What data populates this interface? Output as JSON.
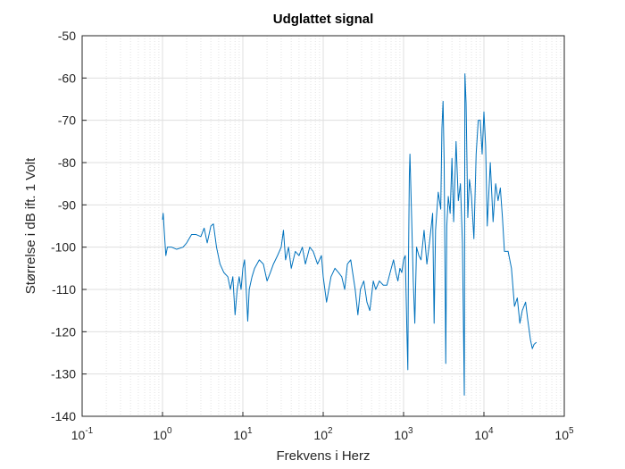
{
  "chart_data": {
    "type": "line",
    "title": "Udglattet signal",
    "x_label": "Frekvens i Herz",
    "y_label": "Størrelse i dB ift. 1 Volt",
    "x_scale": "log",
    "grid": true,
    "minor_grid": true,
    "xlim": [
      0.1,
      100000
    ],
    "xticks": [
      {
        "value": 0.1,
        "label": "10^-1"
      },
      {
        "value": 1,
        "label": "10^0"
      },
      {
        "value": 10,
        "label": "10^1"
      },
      {
        "value": 100,
        "label": "10^2"
      },
      {
        "value": 1000,
        "label": "10^3"
      },
      {
        "value": 10000,
        "label": "10^4"
      },
      {
        "value": 100000,
        "label": "10^5"
      }
    ],
    "ylim": [
      -140,
      -50
    ],
    "yticks": [
      -140,
      -130,
      -120,
      -110,
      -100,
      -90,
      -80,
      -70,
      -60,
      -50
    ],
    "x": [
      1.0,
      1.02,
      1.05,
      1.1,
      1.15,
      1.3,
      1.5,
      1.8,
      2.0,
      2.3,
      2.6,
      3.0,
      3.3,
      3.6,
      4.0,
      4.3,
      4.7,
      5.2,
      5.8,
      6.5,
      7.0,
      7.5,
      8.0,
      8.5,
      9.0,
      9.5,
      10,
      10.5,
      11,
      11.5,
      12,
      13,
      14,
      16,
      18,
      20,
      22,
      24,
      27,
      30,
      32,
      34,
      37,
      40,
      45,
      50,
      55,
      60,
      68,
      75,
      85,
      95,
      100,
      110,
      125,
      140,
      155,
      170,
      185,
      200,
      220,
      250,
      270,
      290,
      320,
      350,
      380,
      420,
      450,
      500,
      560,
      620,
      680,
      750,
      800,
      850,
      900,
      950,
      1000,
      1050,
      1100,
      1130,
      1150,
      1180,
      1200,
      1260,
      1320,
      1380,
      1450,
      1550,
      1650,
      1800,
      1950,
      2100,
      2300,
      2400,
      2500,
      2700,
      2900,
      3000,
      3100,
      3200,
      3350,
      3450,
      3600,
      3800,
      4000,
      4200,
      4500,
      4800,
      5100,
      5400,
      5700,
      5800,
      6000,
      6300,
      6600,
      7000,
      7500,
      8000,
      8500,
      9000,
      9500,
      10000,
      10500,
      11000,
      12000,
      13000,
      14000,
      15000,
      16000,
      17000,
      18000,
      20000,
      22000,
      24000,
      26000,
      28000,
      30000,
      33000,
      35000,
      38000,
      40000,
      42000,
      45000
    ],
    "series": [
      {
        "name": "Udglattet signal",
        "color": "#0072bd",
        "values": [
          -93.5,
          -92,
          -96,
          -102,
          -100,
          -100,
          -100.5,
          -100,
          -99,
          -97,
          -97,
          -97.5,
          -95.5,
          -99,
          -95,
          -94.5,
          -100,
          -104,
          -106,
          -107,
          -110,
          -107,
          -116,
          -110,
          -107,
          -110,
          -105,
          -103,
          -110,
          -117.5,
          -110,
          -107,
          -105,
          -103,
          -104,
          -108,
          -106,
          -104,
          -102,
          -100,
          -96,
          -103,
          -100,
          -105,
          -101,
          -102,
          -100,
          -104,
          -100,
          -101,
          -104,
          -102,
          -107,
          -113,
          -107,
          -105,
          -106,
          -107,
          -110,
          -104,
          -103,
          -110,
          -116,
          -110,
          -108,
          -113,
          -115,
          -108,
          -110,
          -108,
          -109,
          -109,
          -106,
          -103,
          -106,
          -108,
          -105,
          -106,
          -103,
          -102,
          -120,
          -129,
          -104,
          -83,
          -78,
          -93,
          -108,
          -118,
          -100,
          -102,
          -103,
          -96,
          -104,
          -99,
          -92,
          -118,
          -96,
          -87,
          -91,
          -72,
          -65.5,
          -80,
          -127.5,
          -95,
          -88,
          -92,
          -79,
          -94,
          -75,
          -89,
          -85,
          -99,
          -135,
          -59,
          -66,
          -93,
          -84,
          -88,
          -98,
          -78,
          -70,
          -70,
          -78,
          -68,
          -76,
          -95,
          -80,
          -94,
          -85,
          -89,
          -86,
          -93,
          -101,
          -101,
          -105,
          -114,
          -112,
          -118,
          -115,
          -113,
          -117,
          -122,
          -124,
          -123,
          -122.5
        ]
      }
    ]
  }
}
